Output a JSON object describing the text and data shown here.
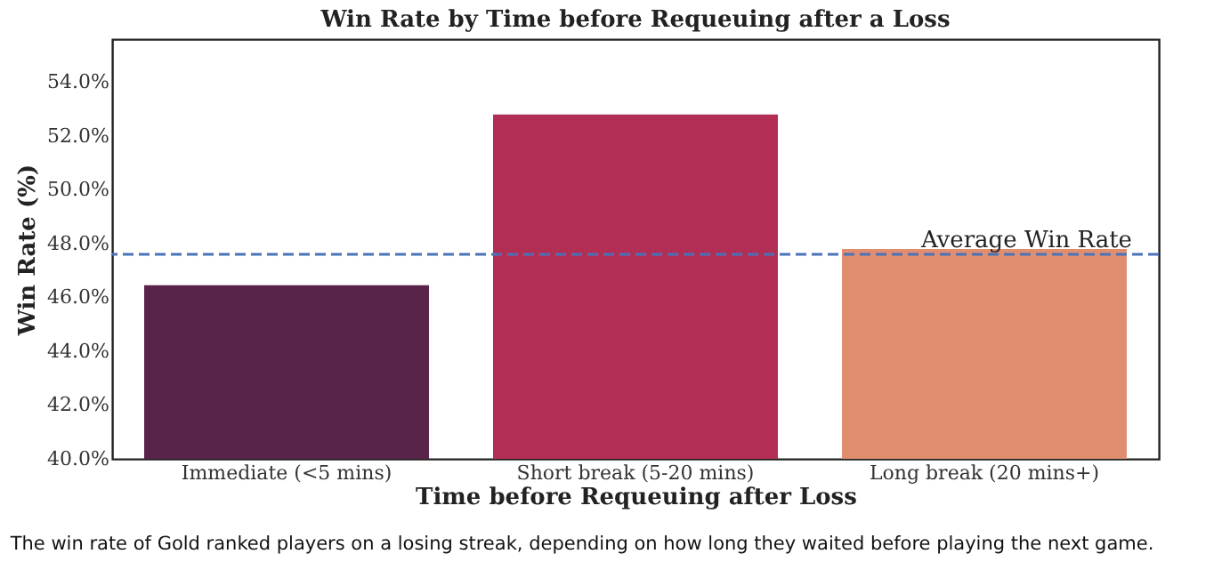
{
  "chart_data": {
    "type": "bar",
    "title": "Win Rate by Time before Requeuing after a Loss",
    "xlabel": "Time before Requeuing after Loss",
    "ylabel": "Win Rate (%)",
    "categories": [
      "Immediate (<5 mins)",
      "Short break (5-20 mins)",
      "Long break (20 mins+)"
    ],
    "values": [
      46.45,
      52.8,
      47.8
    ],
    "colors": [
      "#5a2349",
      "#b22e55",
      "#e08e6f"
    ],
    "ylim": [
      40,
      55.6
    ],
    "yticks": [
      {
        "value": 40,
        "label": "40.0%"
      },
      {
        "value": 42,
        "label": "42.0%"
      },
      {
        "value": 44,
        "label": "44.0%"
      },
      {
        "value": 46,
        "label": "46.0%"
      },
      {
        "value": 48,
        "label": "48.0%"
      },
      {
        "value": 50,
        "label": "50.0%"
      },
      {
        "value": 52,
        "label": "52.0%"
      },
      {
        "value": 54,
        "label": "54.0%"
      }
    ],
    "ref_lines": [
      {
        "axis": "y",
        "value": 47.6,
        "label": "Average Win Rate",
        "color": "#4a72b8",
        "line_style": "dashed"
      }
    ],
    "grid": false,
    "legend": false,
    "annotations": [
      "The win rate of Gold ranked players on a losing streak, depending on how long they waited before playing the next game."
    ]
  }
}
